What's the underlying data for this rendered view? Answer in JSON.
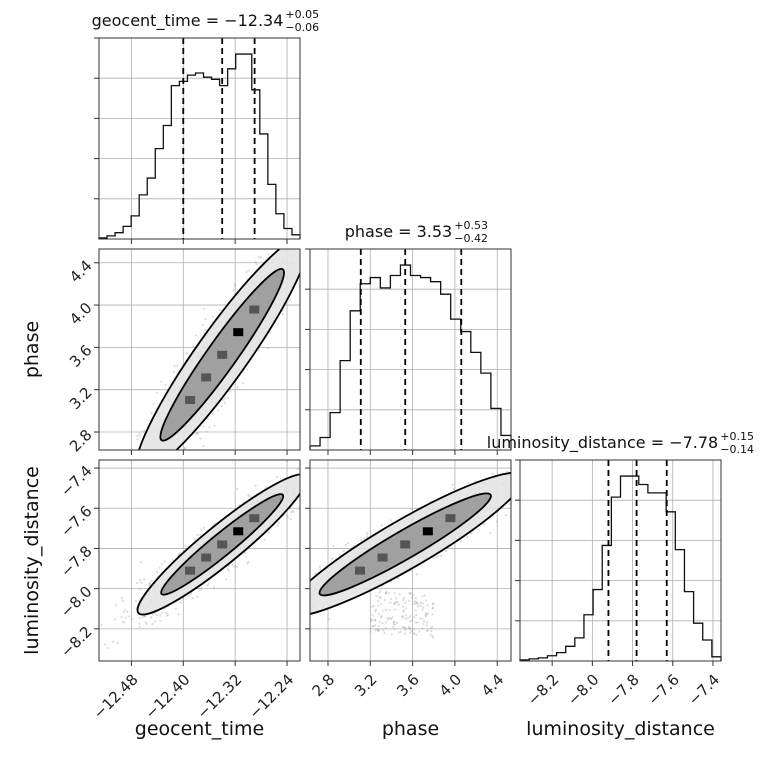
{
  "chart_data": {
    "type": "corner",
    "parameters": [
      "geocent_time",
      "phase",
      "luminosity_distance"
    ],
    "axis_labels": [
      "geocent_time",
      "phase",
      "luminosity_distance"
    ],
    "titles": [
      {
        "param": "geocent_time",
        "text": "geocent_time = ",
        "median": "−12.34",
        "upper": "+0.05",
        "lower": "−0.06"
      },
      {
        "param": "phase",
        "text": "phase = ",
        "median": "3.53",
        "upper": "+0.53",
        "lower": "−0.42"
      },
      {
        "param": "luminosity_distance",
        "text": "luminosity_distance = ",
        "median": "−7.78",
        "upper": "+0.15",
        "lower": "−0.14"
      }
    ],
    "ranges": [
      [
        -12.53,
        -12.22
      ],
      [
        2.63,
        4.53
      ],
      [
        -8.36,
        -7.36
      ]
    ],
    "ticks": [
      {
        "values": [
          -12.48,
          -12.4,
          -12.32,
          -12.24
        ],
        "labels": [
          "−12.48",
          "−12.40",
          "−12.32",
          "−12.24"
        ]
      },
      {
        "values": [
          2.8,
          3.2,
          3.6,
          4.0,
          4.4
        ],
        "labels": [
          "2.8",
          "3.2",
          "3.6",
          "4.0",
          "4.4"
        ]
      },
      {
        "values": [
          -8.2,
          -8.0,
          -7.8,
          -7.6,
          -7.4
        ],
        "labels": [
          "−8.2",
          "−8.0",
          "−7.8",
          "−7.6",
          "−7.4"
        ]
      }
    ],
    "quantiles": [
      [
        -12.4,
        -12.34,
        -12.29
      ],
      [
        3.11,
        3.53,
        4.06
      ],
      [
        -7.92,
        -7.78,
        -7.63
      ]
    ],
    "histograms": [
      {
        "counts": [
          0.5,
          1.5,
          3,
          6,
          11,
          21,
          29,
          43,
          54,
          73,
          75,
          78,
          79,
          77,
          76,
          73,
          81,
          88,
          88,
          71,
          50,
          26,
          12,
          5,
          2
        ]
      },
      {
        "counts": [
          2,
          6,
          18,
          43,
          67,
          80,
          83,
          78,
          84,
          89,
          84,
          83,
          81,
          75,
          63,
          57,
          47,
          37,
          20,
          7
        ]
      },
      {
        "counts": [
          0.5,
          1,
          1.5,
          2.5,
          4,
          7,
          11,
          22,
          34,
          55,
          78,
          88,
          88,
          84,
          80,
          80,
          71,
          53,
          33,
          18,
          10,
          2
        ]
      }
    ],
    "grid": true,
    "points": "grey scatter of posterior samples with 1-sigma and 2-sigma filled contours"
  }
}
